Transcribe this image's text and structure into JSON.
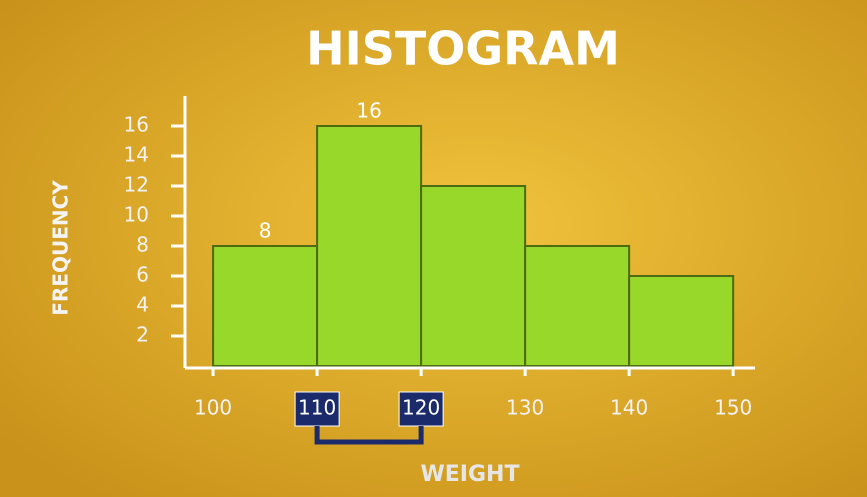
{
  "chart_data": {
    "type": "histogram",
    "title": "HISTOGRAM",
    "x_label": "WEIGHT",
    "y_label": "FREQUENCY",
    "bins": [
      100,
      110,
      120,
      130,
      140,
      150
    ],
    "values": [
      8,
      16,
      12,
      8,
      6
    ],
    "value_labels": [
      "8",
      "16",
      null,
      null,
      null
    ],
    "color": "#98d82a",
    "xlim": [
      97.3,
      152.1
    ],
    "xticks": [
      100,
      110,
      120,
      130,
      140,
      150
    ],
    "highlighted_xticks": [
      110,
      120
    ],
    "ylim": [
      0,
      18
    ],
    "yticks": [
      2,
      4,
      6,
      8,
      10,
      12,
      14,
      16
    ]
  }
}
